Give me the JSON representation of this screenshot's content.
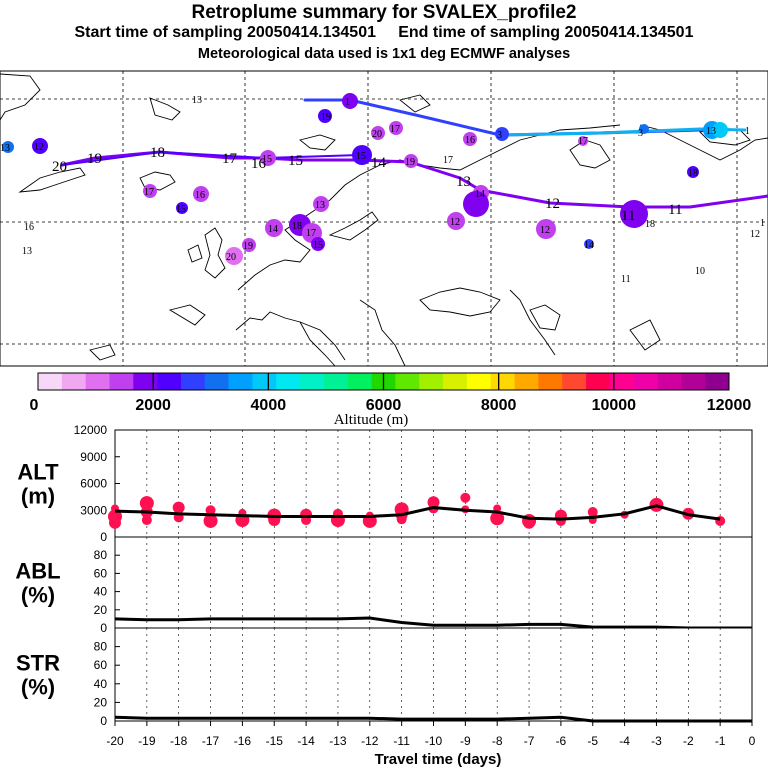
{
  "header": {
    "title": "Retroplume summary for SVALEX_profile2",
    "subtitle": "Start time of sampling 20050414.134501     End time of sampling 20050414.134501",
    "met_note": "Meteorological data used is 1x1 deg ECMWF analyses"
  },
  "map": {
    "colorbar_label": "Altitude (m)",
    "colorbar_ticks": [
      "0",
      "2000",
      "4000",
      "6000",
      "8000",
      "10000",
      "12000"
    ],
    "colorbar_colors": [
      "#f8d8f8",
      "#f0a8f0",
      "#e070f0",
      "#c040f0",
      "#8000f0",
      "#5000ff",
      "#3040ff",
      "#1070f0",
      "#00a0ff",
      "#00c8f8",
      "#00e8f0",
      "#00f0c8",
      "#00f098",
      "#00f060",
      "#20d800",
      "#60e800",
      "#a0f000",
      "#d8f000",
      "#ffff00",
      "#ffd800",
      "#ffa800",
      "#ff7800",
      "#ff4830",
      "#ff0050",
      "#ff0090",
      "#f000a8",
      "#d000a0",
      "#b00098",
      "#900090"
    ],
    "day_labels": [
      "19",
      "18",
      "17",
      "16",
      "15",
      "14",
      "13",
      "12",
      "11"
    ],
    "cluster_numbers": [
      "13",
      "20",
      "12",
      "10",
      "11",
      "1",
      "3",
      "16",
      "15",
      "19",
      "14",
      "17",
      "18"
    ]
  },
  "chart_data": [
    {
      "type": "line",
      "name": "ALT",
      "ylabel": "ALT\n(m)",
      "ylim": [
        0,
        12000
      ],
      "yticks": [
        0,
        3000,
        6000,
        9000,
        12000
      ],
      "x": [
        -20,
        -19,
        -18,
        -17,
        -16,
        -15,
        -14,
        -13,
        -12,
        -11,
        -10,
        -9,
        -8,
        -7,
        -6,
        -5,
        -4,
        -3,
        -2,
        -1
      ],
      "values": [
        2900,
        2800,
        2600,
        2500,
        2400,
        2300,
        2300,
        2300,
        2300,
        2500,
        3300,
        3000,
        2800,
        2100,
        2000,
        2200,
        2600,
        3500,
        2500,
        2000
      ],
      "scatter": [
        {
          "x": -20,
          "y": [
            3200,
            2300,
            1600
          ]
        },
        {
          "x": -19,
          "y": [
            3800,
            2800,
            1900
          ]
        },
        {
          "x": -18,
          "y": [
            3300,
            2200
          ]
        },
        {
          "x": -17,
          "y": [
            3000,
            2300,
            1800
          ]
        },
        {
          "x": -16,
          "y": [
            2700,
            1900
          ]
        },
        {
          "x": -15,
          "y": [
            2400,
            1900
          ]
        },
        {
          "x": -14,
          "y": [
            2500,
            1900
          ]
        },
        {
          "x": -13,
          "y": [
            2600,
            2100,
            1900
          ]
        },
        {
          "x": -12,
          "y": [
            2400,
            1800
          ]
        },
        {
          "x": -11,
          "y": [
            3100,
            2500,
            2000
          ]
        },
        {
          "x": -10,
          "y": [
            3900,
            3200
          ]
        },
        {
          "x": -9,
          "y": [
            4400,
            3100
          ]
        },
        {
          "x": -8,
          "y": [
            3200,
            2100
          ]
        },
        {
          "x": -7,
          "y": [
            1800,
            1600
          ]
        },
        {
          "x": -6,
          "y": [
            2400,
            1800
          ]
        },
        {
          "x": -5,
          "y": [
            2800,
            1900
          ]
        },
        {
          "x": -4,
          "y": [
            2500
          ]
        },
        {
          "x": -3,
          "y": [
            3600
          ]
        },
        {
          "x": -2,
          "y": [
            2600
          ]
        },
        {
          "x": -1,
          "y": [
            1800
          ]
        }
      ]
    },
    {
      "type": "area",
      "name": "ABL",
      "ylabel": "ABL\n(%)",
      "ylim": [
        0,
        100
      ],
      "yticks": [
        0,
        20,
        40,
        60,
        80
      ],
      "x": [
        -20,
        -19,
        -18,
        -17,
        -16,
        -15,
        -14,
        -13,
        -12,
        -11,
        -10,
        -9,
        -8,
        -7,
        -6,
        -5,
        -4,
        -3,
        -2,
        -1,
        0
      ],
      "values": [
        10,
        9,
        9,
        10,
        10,
        10,
        10,
        10,
        11,
        6,
        3,
        3,
        3,
        4,
        4,
        1,
        1,
        1,
        0,
        0,
        0
      ]
    },
    {
      "type": "area",
      "name": "STR",
      "ylabel": "STR\n(%)",
      "ylim": [
        0,
        100
      ],
      "yticks": [
        0,
        20,
        40,
        60,
        80
      ],
      "x": [
        -20,
        -19,
        -18,
        -17,
        -16,
        -15,
        -14,
        -13,
        -12,
        -11,
        -10,
        -9,
        -8,
        -7,
        -6,
        -5,
        -4,
        -3,
        -2,
        -1,
        0
      ],
      "values": [
        4,
        3,
        3,
        3,
        3,
        3,
        3,
        3,
        3,
        2,
        2,
        2,
        2,
        3,
        4,
        0,
        0,
        0,
        0,
        0,
        0
      ]
    },
    {
      "type": "axis",
      "xlabel": "Travel time (days)",
      "xticks": [
        "-20",
        "-19",
        "-18",
        "-17",
        "-16",
        "-15",
        "-14",
        "-13",
        "-12",
        "-11",
        "-10",
        "-9",
        "-8",
        "-7",
        "-6",
        "-5",
        "-4",
        "-3",
        "-2",
        "-1",
        "0"
      ]
    }
  ]
}
